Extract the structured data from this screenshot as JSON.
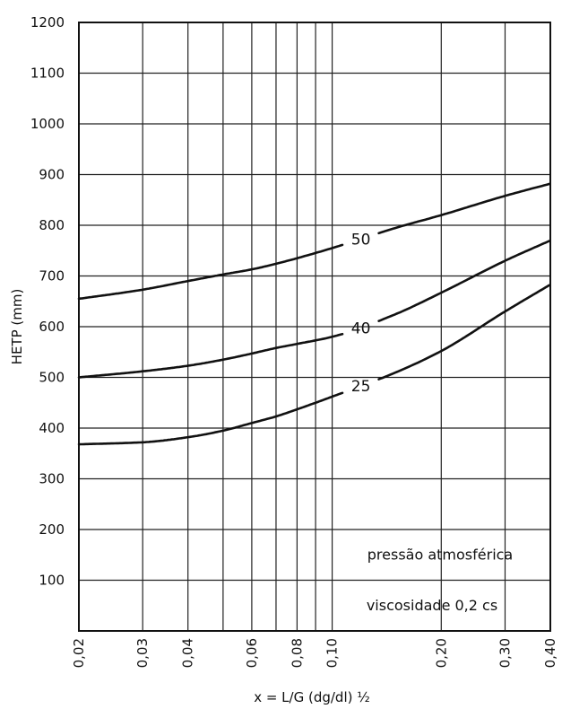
{
  "chart_data": {
    "type": "line",
    "title": "",
    "xlabel": "x = L/G (dg/dl) ½",
    "ylabel": "HETP (mm)",
    "x_scale": "log",
    "xlim": [
      0.02,
      0.4
    ],
    "ylim": [
      0,
      1200
    ],
    "grid": true,
    "y_ticks": [
      {
        "value": 100,
        "label": "100"
      },
      {
        "value": 200,
        "label": "200"
      },
      {
        "value": 300,
        "label": "300"
      },
      {
        "value": 400,
        "label": "400"
      },
      {
        "value": 500,
        "label": "500"
      },
      {
        "value": 600,
        "label": "600"
      },
      {
        "value": 700,
        "label": "700"
      },
      {
        "value": 800,
        "label": "800"
      },
      {
        "value": 900,
        "label": "900"
      },
      {
        "value": 1000,
        "label": "1000"
      },
      {
        "value": 1100,
        "label": "1100"
      },
      {
        "value": 1200,
        "label": "1200"
      }
    ],
    "x_ticks": [
      {
        "value": 0.02,
        "label": "0,02"
      },
      {
        "value": 0.03,
        "label": "0,03"
      },
      {
        "value": 0.04,
        "label": "0,04"
      },
      {
        "value": 0.06,
        "label": "0,06"
      },
      {
        "value": 0.08,
        "label": "0,08"
      },
      {
        "value": 0.1,
        "label": "0,10"
      },
      {
        "value": 0.2,
        "label": "0,20"
      },
      {
        "value": 0.3,
        "label": "0,30"
      },
      {
        "value": 0.4,
        "label": "0,40"
      }
    ],
    "x_gridlines": [
      0.02,
      0.03,
      0.04,
      0.05,
      0.06,
      0.07,
      0.08,
      0.09,
      0.1,
      0.2,
      0.3,
      0.4
    ],
    "series": [
      {
        "name": "50",
        "x": [
          0.02,
          0.03,
          0.04,
          0.05,
          0.06,
          0.07,
          0.08,
          0.1,
          0.15,
          0.2,
          0.3,
          0.4
        ],
        "y": [
          655,
          673,
          690,
          703,
          713,
          724,
          735,
          755,
          795,
          820,
          858,
          882
        ]
      },
      {
        "name": "40",
        "x": [
          0.02,
          0.03,
          0.04,
          0.05,
          0.06,
          0.07,
          0.08,
          0.1,
          0.15,
          0.2,
          0.3,
          0.4
        ],
        "y": [
          500,
          512,
          523,
          535,
          547,
          558,
          566,
          580,
          625,
          667,
          730,
          770
        ]
      },
      {
        "name": "25",
        "x": [
          0.02,
          0.03,
          0.04,
          0.05,
          0.06,
          0.07,
          0.08,
          0.1,
          0.15,
          0.2,
          0.3,
          0.4
        ],
        "y": [
          368,
          372,
          382,
          395,
          410,
          423,
          437,
          462,
          510,
          552,
          630,
          683
        ]
      }
    ],
    "annotations": [
      "pressão atmosférica",
      "viscosidade 0,2 cs"
    ]
  }
}
